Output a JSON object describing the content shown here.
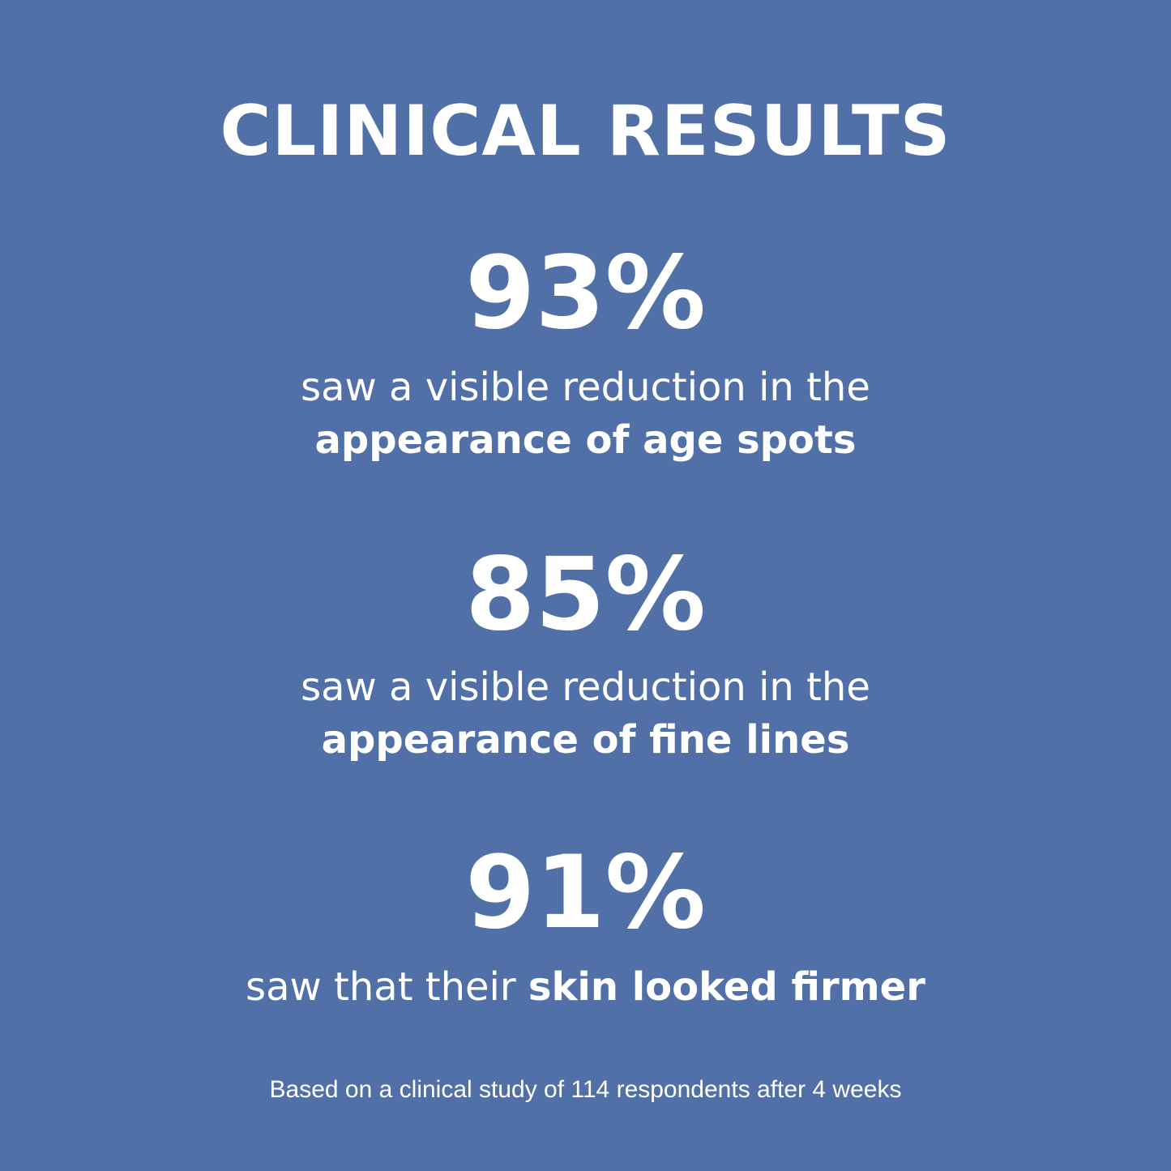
{
  "title": "CLINICAL RESULTS",
  "background_color": "#5170a8",
  "stats": [
    {
      "value": "93%",
      "line1": "saw a visible reduction in the",
      "line2_bold": "appearance of age spots"
    },
    {
      "value": "85%",
      "line1": "saw a visible reduction in the",
      "line2_bold": "appearance of fine lines"
    },
    {
      "value": "91%",
      "line1": "saw that their ",
      "line1_bold": "skin looked firmer"
    }
  ],
  "footnote": "Based on a clinical study of 114 respondents after 4 weeks"
}
